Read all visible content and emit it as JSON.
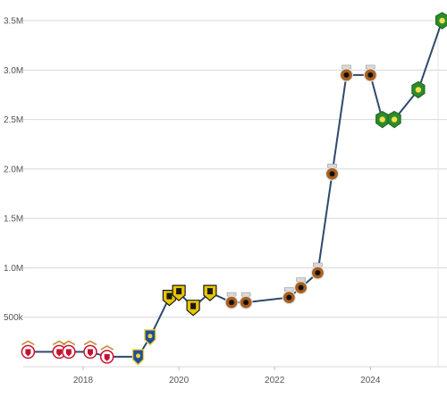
{
  "chart_data": {
    "type": "line",
    "title": "",
    "xlabel": "",
    "ylabel": "",
    "x_ticks": [
      "2018",
      "2020",
      "2022",
      "2024"
    ],
    "y_ticks": [
      "500k",
      "1.0M",
      "1.5M",
      "2.0M",
      "2.5M",
      "3.0M",
      "3.5M"
    ],
    "xlim": [
      2016.75,
      2025.6
    ],
    "ylim": [
      0,
      3.6
    ],
    "grid": true,
    "colors": {
      "line": "#2e4a6b",
      "grid": "#d8d8d8",
      "plot_bg": "#ffffff",
      "marker_red_white": "#c8102e",
      "marker_yellow_black": "#e8c600",
      "marker_bronze_black": "#a9601f",
      "marker_green_yellow": "#2e8b2e",
      "marker_blue_yellow": "#1e4f9c"
    },
    "series": [
      {
        "values": [
          {
            "x": 2016.85,
            "y": 0.15,
            "marker": "red-white-crest"
          },
          {
            "x": 2017.5,
            "y": 0.15,
            "marker": "red-white-crest"
          },
          {
            "x": 2017.7,
            "y": 0.15,
            "marker": "red-white-crest"
          },
          {
            "x": 2018.15,
            "y": 0.15,
            "marker": "red-white-crest"
          },
          {
            "x": 2018.5,
            "y": 0.1,
            "marker": "red-white-crest"
          },
          {
            "x": 2019.15,
            "y": 0.1,
            "marker": "blue-yellow-crest"
          },
          {
            "x": 2019.4,
            "y": 0.3,
            "marker": "blue-yellow-crest"
          },
          {
            "x": 2019.8,
            "y": 0.7,
            "marker": "yellow-black-crest"
          },
          {
            "x": 2020.0,
            "y": 0.75,
            "marker": "yellow-black-crest"
          },
          {
            "x": 2020.3,
            "y": 0.6,
            "marker": "yellow-black-crest"
          },
          {
            "x": 2020.65,
            "y": 0.75,
            "marker": "yellow-black-crest"
          },
          {
            "x": 2021.1,
            "y": 0.65,
            "marker": "bronze-black-crest"
          },
          {
            "x": 2021.4,
            "y": 0.65,
            "marker": "bronze-black-crest"
          },
          {
            "x": 2022.3,
            "y": 0.7,
            "marker": "bronze-black-crest"
          },
          {
            "x": 2022.55,
            "y": 0.8,
            "marker": "bronze-black-crest"
          },
          {
            "x": 2022.9,
            "y": 0.95,
            "marker": "bronze-black-crest"
          },
          {
            "x": 2023.2,
            "y": 1.95,
            "marker": "bronze-black-crest"
          },
          {
            "x": 2023.5,
            "y": 2.95,
            "marker": "bronze-black-crest"
          },
          {
            "x": 2024.0,
            "y": 2.95,
            "marker": "bronze-black-crest"
          },
          {
            "x": 2024.25,
            "y": 2.5,
            "marker": "green-yellow-crest"
          },
          {
            "x": 2024.5,
            "y": 2.5,
            "marker": "green-yellow-crest"
          },
          {
            "x": 2025.0,
            "y": 2.8,
            "marker": "green-yellow-crest"
          },
          {
            "x": 2025.5,
            "y": 3.5,
            "marker": "green-yellow-crest"
          }
        ]
      }
    ]
  }
}
